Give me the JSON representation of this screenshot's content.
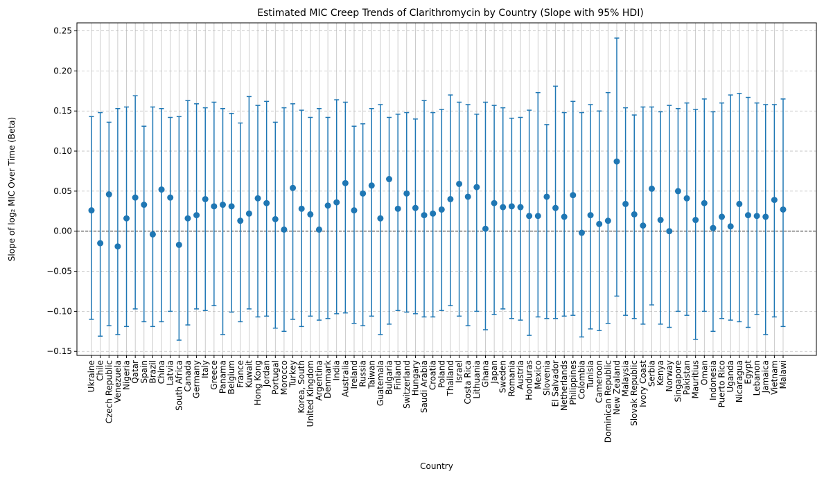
{
  "chart_data": {
    "type": "scatter",
    "title": "Estimated MIC Creep Trends of Clarithromycin by Country (Slope with 95% HDI)",
    "xlabel": "Country",
    "ylabel": "Slope of log₂ MIC Over Time (Beta)",
    "ylim": [
      -0.155,
      0.26
    ],
    "yticks": [
      -0.15,
      -0.1,
      -0.05,
      0.0,
      0.05,
      0.1,
      0.15,
      0.2,
      0.25
    ],
    "ytick_labels": [
      "−0.15",
      "−0.10",
      "−0.05",
      "0.00",
      "0.05",
      "0.10",
      "0.15",
      "0.20",
      "0.25"
    ],
    "grid": {
      "x": "solid",
      "y": "dashed"
    },
    "reference_line": 0.0,
    "series_color": "#1f77b4",
    "points": [
      {
        "country": "Ukraine",
        "y": 0.026,
        "lo": -0.11,
        "hi": 0.143
      },
      {
        "country": "Chile",
        "y": -0.015,
        "lo": -0.131,
        "hi": 0.148
      },
      {
        "country": "Czech Republic",
        "y": 0.046,
        "lo": -0.118,
        "hi": 0.136
      },
      {
        "country": "Venezuela",
        "y": -0.019,
        "lo": -0.129,
        "hi": 0.153
      },
      {
        "country": "Nigeria",
        "y": 0.016,
        "lo": -0.119,
        "hi": 0.155
      },
      {
        "country": "Qatar",
        "y": 0.042,
        "lo": -0.097,
        "hi": 0.169
      },
      {
        "country": "Spain",
        "y": 0.033,
        "lo": -0.113,
        "hi": 0.131
      },
      {
        "country": "Brazil",
        "y": -0.004,
        "lo": -0.119,
        "hi": 0.155
      },
      {
        "country": "China",
        "y": 0.052,
        "lo": -0.113,
        "hi": 0.153
      },
      {
        "country": "Latvia",
        "y": 0.042,
        "lo": -0.1,
        "hi": 0.142
      },
      {
        "country": "South Africa",
        "y": -0.017,
        "lo": -0.136,
        "hi": 0.143
      },
      {
        "country": "Canada",
        "y": 0.016,
        "lo": -0.117,
        "hi": 0.163
      },
      {
        "country": "Germany",
        "y": 0.02,
        "lo": -0.097,
        "hi": 0.159
      },
      {
        "country": "Italy",
        "y": 0.04,
        "lo": -0.099,
        "hi": 0.154
      },
      {
        "country": "Greece",
        "y": 0.031,
        "lo": -0.093,
        "hi": 0.161
      },
      {
        "country": "Panama",
        "y": 0.033,
        "lo": -0.129,
        "hi": 0.153
      },
      {
        "country": "Belgium",
        "y": 0.031,
        "lo": -0.101,
        "hi": 0.147
      },
      {
        "country": "France",
        "y": 0.013,
        "lo": -0.113,
        "hi": 0.135
      },
      {
        "country": "Kuwait",
        "y": 0.022,
        "lo": -0.097,
        "hi": 0.168
      },
      {
        "country": "Hong Kong",
        "y": 0.041,
        "lo": -0.107,
        "hi": 0.157
      },
      {
        "country": "Jordan",
        "y": 0.035,
        "lo": -0.106,
        "hi": 0.162
      },
      {
        "country": "Portugal",
        "y": 0.015,
        "lo": -0.121,
        "hi": 0.136
      },
      {
        "country": "Morocco",
        "y": 0.002,
        "lo": -0.125,
        "hi": 0.154
      },
      {
        "country": "Turkey",
        "y": 0.054,
        "lo": -0.11,
        "hi": 0.159
      },
      {
        "country": "Korea, South",
        "y": 0.028,
        "lo": -0.119,
        "hi": 0.151
      },
      {
        "country": "United Kingdom",
        "y": 0.021,
        "lo": -0.106,
        "hi": 0.142
      },
      {
        "country": "Argentina",
        "y": 0.002,
        "lo": -0.111,
        "hi": 0.153
      },
      {
        "country": "Denmark",
        "y": 0.032,
        "lo": -0.109,
        "hi": 0.142
      },
      {
        "country": "India",
        "y": 0.036,
        "lo": -0.103,
        "hi": 0.164
      },
      {
        "country": "Australia",
        "y": 0.06,
        "lo": -0.102,
        "hi": 0.161
      },
      {
        "country": "Ireland",
        "y": 0.026,
        "lo": -0.115,
        "hi": 0.131
      },
      {
        "country": "Russia",
        "y": 0.047,
        "lo": -0.118,
        "hi": 0.134
      },
      {
        "country": "Taiwan",
        "y": 0.057,
        "lo": -0.106,
        "hi": 0.153
      },
      {
        "country": "Guatemala",
        "y": 0.016,
        "lo": -0.129,
        "hi": 0.158
      },
      {
        "country": "Bulgaria",
        "y": 0.065,
        "lo": -0.116,
        "hi": 0.142
      },
      {
        "country": "Finland",
        "y": 0.028,
        "lo": -0.099,
        "hi": 0.146
      },
      {
        "country": "Switzerland",
        "y": 0.047,
        "lo": -0.101,
        "hi": 0.148
      },
      {
        "country": "Hungary",
        "y": 0.029,
        "lo": -0.103,
        "hi": 0.14
      },
      {
        "country": "Saudi Arabia",
        "y": 0.02,
        "lo": -0.107,
        "hi": 0.163
      },
      {
        "country": "Croatia",
        "y": 0.022,
        "lo": -0.107,
        "hi": 0.148
      },
      {
        "country": "Poland",
        "y": 0.027,
        "lo": -0.099,
        "hi": 0.152
      },
      {
        "country": "Thailand",
        "y": 0.04,
        "lo": -0.093,
        "hi": 0.17
      },
      {
        "country": "Israel",
        "y": 0.059,
        "lo": -0.106,
        "hi": 0.161
      },
      {
        "country": "Costa Rica",
        "y": 0.043,
        "lo": -0.118,
        "hi": 0.158
      },
      {
        "country": "Lithuania",
        "y": 0.055,
        "lo": -0.1,
        "hi": 0.146
      },
      {
        "country": "Ghana",
        "y": 0.003,
        "lo": -0.123,
        "hi": 0.161
      },
      {
        "country": "Japan",
        "y": 0.035,
        "lo": -0.104,
        "hi": 0.157
      },
      {
        "country": "Sweden",
        "y": 0.03,
        "lo": -0.097,
        "hi": 0.154
      },
      {
        "country": "Romania",
        "y": 0.031,
        "lo": -0.109,
        "hi": 0.141
      },
      {
        "country": "Austria",
        "y": 0.03,
        "lo": -0.111,
        "hi": 0.142
      },
      {
        "country": "Honduras",
        "y": 0.019,
        "lo": -0.13,
        "hi": 0.151
      },
      {
        "country": "Mexico",
        "y": 0.019,
        "lo": -0.107,
        "hi": 0.173
      },
      {
        "country": "Slovenia",
        "y": 0.043,
        "lo": -0.109,
        "hi": 0.133
      },
      {
        "country": "El Salvador",
        "y": 0.029,
        "lo": -0.109,
        "hi": 0.181
      },
      {
        "country": "Netherlands",
        "y": 0.018,
        "lo": -0.106,
        "hi": 0.148
      },
      {
        "country": "Philippines",
        "y": 0.045,
        "lo": -0.105,
        "hi": 0.162
      },
      {
        "country": "Colombia",
        "y": -0.002,
        "lo": -0.132,
        "hi": 0.148
      },
      {
        "country": "Tunisia",
        "y": 0.02,
        "lo": -0.122,
        "hi": 0.158
      },
      {
        "country": "Cameroon",
        "y": 0.009,
        "lo": -0.124,
        "hi": 0.15
      },
      {
        "country": "Dominican Republic",
        "y": 0.013,
        "lo": -0.115,
        "hi": 0.173
      },
      {
        "country": "New Zealand",
        "y": 0.087,
        "lo": -0.081,
        "hi": 0.241
      },
      {
        "country": "Malaysia",
        "y": 0.034,
        "lo": -0.105,
        "hi": 0.154
      },
      {
        "country": "Slovak Republic",
        "y": 0.021,
        "lo": -0.109,
        "hi": 0.145
      },
      {
        "country": "Ivory Coast",
        "y": 0.007,
        "lo": -0.116,
        "hi": 0.155
      },
      {
        "country": "Serbia",
        "y": 0.053,
        "lo": -0.092,
        "hi": 0.155
      },
      {
        "country": "Kenya",
        "y": 0.014,
        "lo": -0.116,
        "hi": 0.149
      },
      {
        "country": "Norway",
        "y": 0.0,
        "lo": -0.12,
        "hi": 0.157
      },
      {
        "country": "Singapore",
        "y": 0.05,
        "lo": -0.1,
        "hi": 0.153
      },
      {
        "country": "Pakistan",
        "y": 0.041,
        "lo": -0.105,
        "hi": 0.16
      },
      {
        "country": "Mauritius",
        "y": 0.014,
        "lo": -0.135,
        "hi": 0.152
      },
      {
        "country": "Oman",
        "y": 0.035,
        "lo": -0.1,
        "hi": 0.165
      },
      {
        "country": "Indonesia",
        "y": 0.004,
        "lo": -0.125,
        "hi": 0.149
      },
      {
        "country": "Puerto Rico",
        "y": 0.018,
        "lo": -0.109,
        "hi": 0.16
      },
      {
        "country": "Uganda",
        "y": 0.006,
        "lo": -0.111,
        "hi": 0.17
      },
      {
        "country": "Nicaragua",
        "y": 0.034,
        "lo": -0.113,
        "hi": 0.172
      },
      {
        "country": "Egypt",
        "y": 0.02,
        "lo": -0.12,
        "hi": 0.167
      },
      {
        "country": "Lebanon",
        "y": 0.019,
        "lo": -0.104,
        "hi": 0.16
      },
      {
        "country": "Jamaica",
        "y": 0.018,
        "lo": -0.129,
        "hi": 0.158
      },
      {
        "country": "Vietnam",
        "y": 0.039,
        "lo": -0.107,
        "hi": 0.158
      },
      {
        "country": "Malawi",
        "y": 0.027,
        "lo": -0.119,
        "hi": 0.165
      }
    ]
  }
}
